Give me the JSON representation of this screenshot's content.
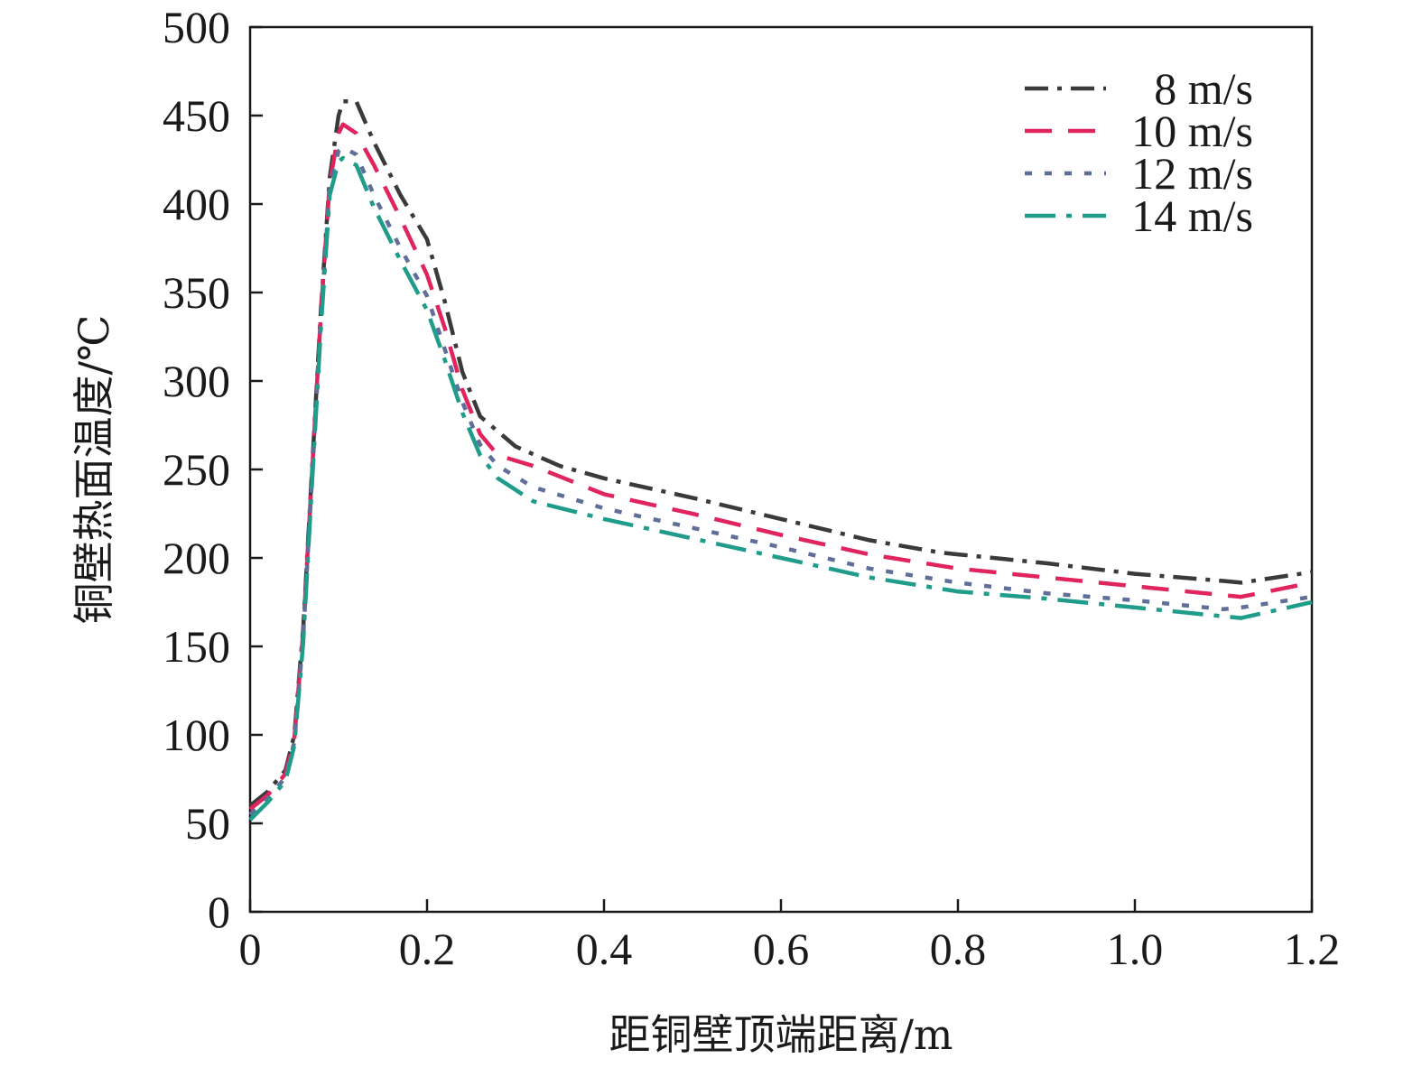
{
  "chart_data": {
    "type": "line",
    "xlabel": "距铜壁顶端距离/m",
    "ylabel": "铜壁热面温度/℃",
    "xlim": [
      0,
      1.2
    ],
    "ylim": [
      0,
      500
    ],
    "x_ticks": [
      0,
      0.2,
      0.4,
      0.6,
      0.8,
      1.0,
      1.2
    ],
    "x_tick_labels": [
      "0",
      "0.2",
      "0.4",
      "0.6",
      "0.8",
      "1.0",
      "1.2"
    ],
    "y_ticks": [
      0,
      50,
      100,
      150,
      200,
      250,
      300,
      350,
      400,
      450,
      500
    ],
    "y_tick_labels": [
      "0",
      "50",
      "100",
      "150",
      "200",
      "250",
      "300",
      "350",
      "400",
      "450",
      "500"
    ],
    "grid": false,
    "legend_position": "top-right",
    "series": [
      {
        "name": "8 m/s",
        "color": "#3a3a3a",
        "dash": "dash-dot",
        "x": [
          0,
          0.02,
          0.04,
          0.05,
          0.06,
          0.07,
          0.08,
          0.09,
          0.1,
          0.105,
          0.12,
          0.14,
          0.17,
          0.2,
          0.22,
          0.24,
          0.26,
          0.3,
          0.35,
          0.4,
          0.5,
          0.6,
          0.7,
          0.78,
          0.8,
          0.9,
          1.0,
          1.1,
          1.12,
          1.2
        ],
        "y": [
          60,
          68,
          80,
          100,
          160,
          250,
          340,
          415,
          450,
          458,
          458,
          435,
          405,
          380,
          345,
          305,
          280,
          263,
          252,
          245,
          234,
          222,
          210,
          203,
          202,
          197,
          191,
          187,
          186,
          192
        ]
      },
      {
        "name": "10 m/s",
        "color": "#e0245e",
        "dash": "long-dash",
        "x": [
          0,
          0.02,
          0.04,
          0.05,
          0.06,
          0.07,
          0.08,
          0.09,
          0.1,
          0.105,
          0.12,
          0.14,
          0.17,
          0.2,
          0.22,
          0.24,
          0.26,
          0.28,
          0.32,
          0.4,
          0.5,
          0.6,
          0.7,
          0.8,
          0.9,
          1.0,
          1.1,
          1.12,
          1.2
        ],
        "y": [
          58,
          66,
          78,
          98,
          158,
          248,
          338,
          412,
          440,
          445,
          440,
          422,
          392,
          360,
          330,
          295,
          270,
          258,
          252,
          236,
          225,
          213,
          202,
          194,
          189,
          184,
          179,
          178,
          186
        ]
      },
      {
        "name": "12 m/s",
        "color": "#5f6f9a",
        "dash": "dot",
        "x": [
          0,
          0.02,
          0.04,
          0.05,
          0.06,
          0.07,
          0.08,
          0.09,
          0.1,
          0.105,
          0.12,
          0.14,
          0.17,
          0.2,
          0.22,
          0.24,
          0.26,
          0.28,
          0.32,
          0.4,
          0.5,
          0.6,
          0.7,
          0.8,
          0.9,
          1.0,
          1.1,
          1.12,
          1.2
        ],
        "y": [
          55,
          64,
          76,
          96,
          155,
          245,
          335,
          410,
          430,
          432,
          428,
          405,
          375,
          348,
          318,
          288,
          264,
          252,
          240,
          228,
          217,
          206,
          194,
          186,
          180,
          176,
          171,
          172,
          178
        ]
      },
      {
        "name": "14 m/s",
        "color": "#1f9c8a",
        "dash": "dash-dot-long",
        "x": [
          0,
          0.02,
          0.04,
          0.05,
          0.06,
          0.07,
          0.08,
          0.09,
          0.1,
          0.105,
          0.12,
          0.14,
          0.17,
          0.2,
          0.22,
          0.24,
          0.26,
          0.28,
          0.32,
          0.4,
          0.5,
          0.6,
          0.7,
          0.8,
          0.9,
          1.0,
          1.1,
          1.12,
          1.2
        ],
        "y": [
          52,
          62,
          74,
          94,
          152,
          242,
          330,
          405,
          424,
          426,
          422,
          398,
          368,
          340,
          312,
          282,
          258,
          245,
          232,
          222,
          211,
          200,
          189,
          181,
          177,
          172,
          167,
          166,
          175
        ]
      }
    ]
  }
}
